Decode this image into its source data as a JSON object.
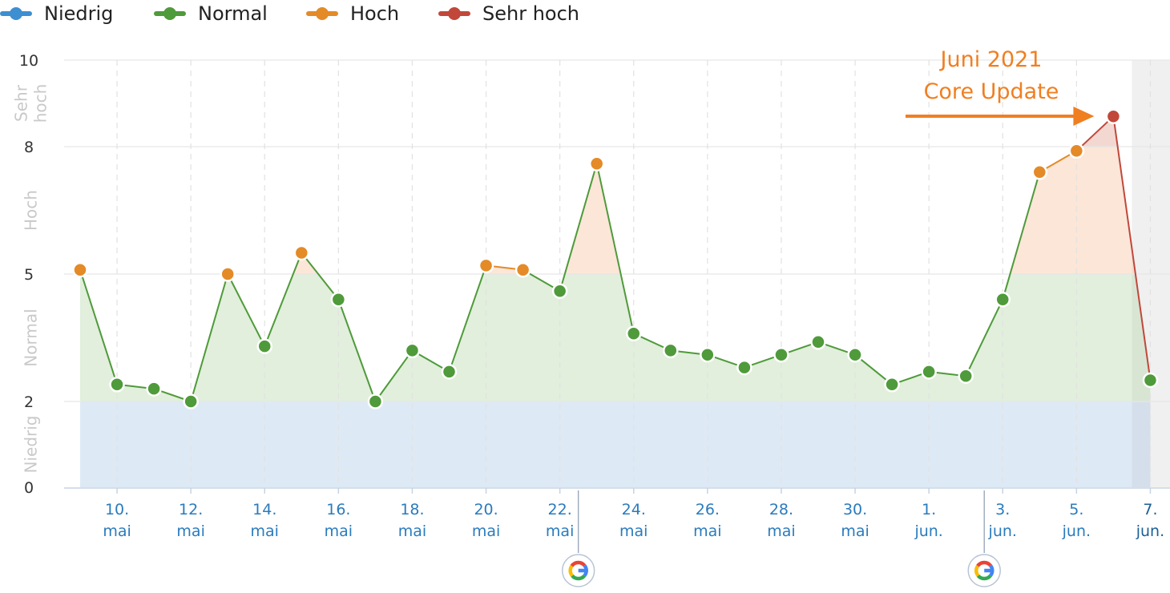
{
  "legend": [
    {
      "label": "Niedrig",
      "color": "#3d8fd1"
    },
    {
      "label": "Normal",
      "color": "#4f9a3a"
    },
    {
      "label": "Hoch",
      "color": "#e48a27"
    },
    {
      "label": "Sehr hoch",
      "color": "#c1473a"
    }
  ],
  "chart_data": {
    "type": "area",
    "y_ticks": [
      "0",
      "2",
      "5",
      "8",
      "10"
    ],
    "ylim": [
      0,
      10
    ],
    "bands": [
      {
        "name": "Niedrig",
        "from": 0,
        "to": 2,
        "fill": "#dce8f5"
      },
      {
        "name": "Normal",
        "from": 2,
        "to": 5,
        "fill": "#dfeeda"
      },
      {
        "name": "Hoch",
        "from": 5,
        "to": 8,
        "fill": "#fbe5d6"
      },
      {
        "name": "Sehr hoch",
        "from": 8,
        "to": 10,
        "fill": "#f1d6cf"
      }
    ],
    "band_labels": [
      {
        "lines": [
          "Sehr",
          "hoch"
        ],
        "mid": 9
      },
      {
        "lines": [
          "Hoch"
        ],
        "mid": 6.5
      },
      {
        "lines": [
          "Normal"
        ],
        "mid": 3.5
      },
      {
        "lines": [
          "Niedrig"
        ],
        "mid": 1
      }
    ],
    "x_labels": [
      {
        "index": 1,
        "day": "10.",
        "month": "mai"
      },
      {
        "index": 3,
        "day": "12.",
        "month": "mai"
      },
      {
        "index": 5,
        "day": "14.",
        "month": "mai"
      },
      {
        "index": 7,
        "day": "16.",
        "month": "mai"
      },
      {
        "index": 9,
        "day": "18.",
        "month": "mai"
      },
      {
        "index": 11,
        "day": "20.",
        "month": "mai"
      },
      {
        "index": 13,
        "day": "22.",
        "month": "mai"
      },
      {
        "index": 15,
        "day": "24.",
        "month": "mai"
      },
      {
        "index": 17,
        "day": "26.",
        "month": "mai"
      },
      {
        "index": 19,
        "day": "28.",
        "month": "mai"
      },
      {
        "index": 21,
        "day": "30.",
        "month": "mai"
      },
      {
        "index": 23,
        "day": "1.",
        "month": "jun."
      },
      {
        "index": 25,
        "day": "3.",
        "month": "jun."
      },
      {
        "index": 27,
        "day": "5.",
        "month": "jun."
      },
      {
        "index": 29,
        "day": "7.",
        "month": "jun."
      }
    ],
    "values": [
      5.1,
      2.4,
      2.3,
      2.0,
      5.0,
      3.3,
      5.5,
      4.4,
      2.0,
      3.2,
      2.7,
      5.2,
      5.1,
      4.6,
      7.6,
      3.6,
      3.2,
      3.1,
      2.8,
      3.1,
      3.4,
      3.1,
      2.4,
      2.7,
      2.6,
      4.4,
      7.4,
      7.9,
      8.7,
      2.5
    ],
    "google_markers": [
      14,
      25
    ],
    "highlight_from_index": 28.5,
    "annotation": {
      "lines": [
        "Juni 2021",
        "Core Update"
      ],
      "point_index": 28,
      "color": "#f07f21"
    }
  }
}
